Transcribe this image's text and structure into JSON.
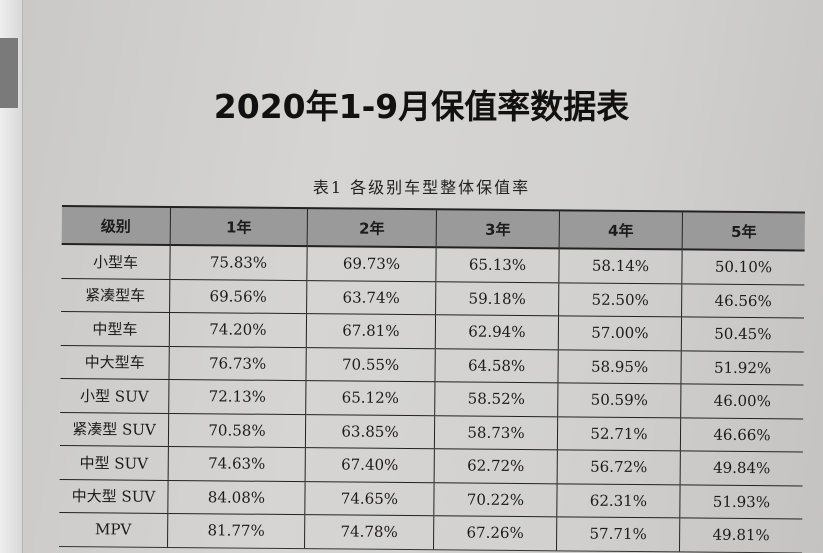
{
  "document": {
    "title": "2020年1-9月保值率数据表",
    "caption": "表1   各级别车型整体保值率",
    "table": {
      "headers": [
        "级别",
        "1年",
        "2年",
        "3年",
        "4年",
        "5年"
      ],
      "rows": [
        [
          "小型车",
          "75.83%",
          "69.73%",
          "65.13%",
          "58.14%",
          "50.10%"
        ],
        [
          "紧凑型车",
          "69.56%",
          "63.74%",
          "59.18%",
          "52.50%",
          "46.56%"
        ],
        [
          "中型车",
          "74.20%",
          "67.81%",
          "62.94%",
          "57.00%",
          "50.45%"
        ],
        [
          "中大型车",
          "76.73%",
          "70.55%",
          "64.58%",
          "58.95%",
          "51.92%"
        ],
        [
          "小型 SUV",
          "72.13%",
          "65.12%",
          "58.52%",
          "50.59%",
          "46.00%"
        ],
        [
          "紧凑型 SUV",
          "70.58%",
          "63.85%",
          "58.73%",
          "52.71%",
          "46.66%"
        ],
        [
          "中型 SUV",
          "74.63%",
          "67.40%",
          "62.72%",
          "56.72%",
          "49.84%"
        ],
        [
          "中大型 SUV",
          "84.08%",
          "74.65%",
          "70.22%",
          "62.31%",
          "51.93%"
        ],
        [
          "MPV",
          "81.77%",
          "74.78%",
          "67.26%",
          "57.71%",
          "49.81%"
        ]
      ]
    }
  },
  "colors": {
    "header_bg": "#9a9a9a",
    "paper": "#d2d1cf"
  }
}
